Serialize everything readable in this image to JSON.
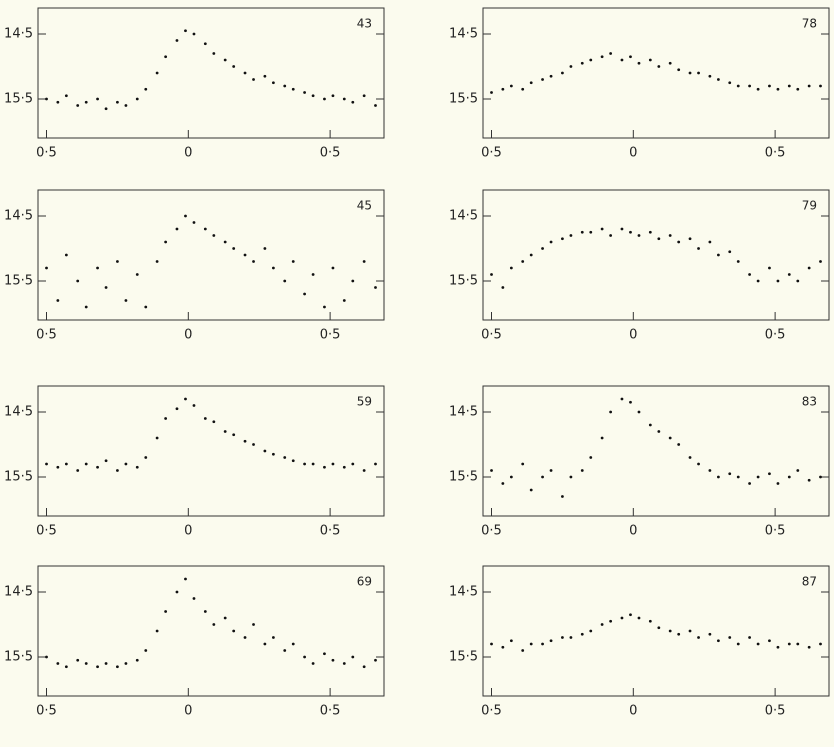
{
  "chart_data": [
    {
      "type": "scatter",
      "title": "43",
      "xlim": [
        -0.53,
        0.69
      ],
      "ylim": [
        16.1,
        14.1
      ],
      "xticks": [
        {
          "value": -0.5,
          "label": "0·5"
        },
        0,
        {
          "value": 0.5,
          "label": "0·5"
        }
      ],
      "yticks": [
        {
          "value": 14.5,
          "label": "14·5"
        },
        {
          "value": 15.5,
          "label": "15·5"
        }
      ],
      "color": "#111111",
      "x": [
        -0.5,
        -0.46,
        -0.43,
        -0.39,
        -0.36,
        -0.32,
        -0.29,
        -0.25,
        -0.22,
        -0.18,
        -0.15,
        -0.11,
        -0.08,
        -0.04,
        -0.01,
        0.02,
        0.06,
        0.09,
        0.13,
        0.16,
        0.2,
        0.23,
        0.27,
        0.3,
        0.34,
        0.37,
        0.41,
        0.44,
        0.48,
        0.51,
        0.55,
        0.58,
        0.62,
        0.66
      ],
      "values": [
        15.5,
        15.55,
        15.45,
        15.6,
        15.55,
        15.5,
        15.65,
        15.55,
        15.6,
        15.5,
        15.35,
        15.1,
        14.85,
        14.6,
        14.45,
        14.5,
        14.65,
        14.8,
        14.9,
        15.0,
        15.1,
        15.2,
        15.15,
        15.25,
        15.3,
        15.35,
        15.4,
        15.45,
        15.5,
        15.45,
        15.5,
        15.55,
        15.45,
        15.6
      ]
    },
    {
      "type": "scatter",
      "title": "78",
      "xlim": [
        -0.53,
        0.69
      ],
      "ylim": [
        16.1,
        14.1
      ],
      "xticks": [
        {
          "value": -0.5,
          "label": "0·5"
        },
        0,
        {
          "value": 0.5,
          "label": "0·5"
        }
      ],
      "yticks": [
        {
          "value": 14.5,
          "label": "14·5"
        },
        {
          "value": 15.5,
          "label": "15·5"
        }
      ],
      "color": "#111111",
      "x": [
        -0.5,
        -0.46,
        -0.43,
        -0.39,
        -0.36,
        -0.32,
        -0.29,
        -0.25,
        -0.22,
        -0.18,
        -0.15,
        -0.11,
        -0.08,
        -0.04,
        -0.01,
        0.02,
        0.06,
        0.09,
        0.13,
        0.16,
        0.2,
        0.23,
        0.27,
        0.3,
        0.34,
        0.37,
        0.41,
        0.44,
        0.48,
        0.51,
        0.55,
        0.58,
        0.62,
        0.66
      ],
      "values": [
        15.4,
        15.35,
        15.3,
        15.35,
        15.25,
        15.2,
        15.15,
        15.1,
        15.0,
        14.95,
        14.9,
        14.85,
        14.8,
        14.9,
        14.85,
        14.95,
        14.9,
        15.0,
        14.95,
        15.05,
        15.1,
        15.1,
        15.15,
        15.2,
        15.25,
        15.3,
        15.3,
        15.35,
        15.3,
        15.35,
        15.3,
        15.35,
        15.3,
        15.3
      ]
    },
    {
      "type": "scatter",
      "title": "45",
      "xlim": [
        -0.53,
        0.69
      ],
      "ylim": [
        16.1,
        14.1
      ],
      "xticks": [
        {
          "value": -0.5,
          "label": "0·5"
        },
        0,
        {
          "value": 0.5,
          "label": "0·5"
        }
      ],
      "yticks": [
        {
          "value": 14.5,
          "label": "14·5"
        },
        {
          "value": 15.5,
          "label": "15·5"
        }
      ],
      "color": "#111111",
      "x": [
        -0.5,
        -0.46,
        -0.43,
        -0.39,
        -0.36,
        -0.32,
        -0.29,
        -0.25,
        -0.22,
        -0.18,
        -0.15,
        -0.11,
        -0.08,
        -0.04,
        -0.01,
        0.02,
        0.06,
        0.09,
        0.13,
        0.16,
        0.2,
        0.23,
        0.27,
        0.3,
        0.34,
        0.37,
        0.41,
        0.44,
        0.48,
        0.51,
        0.55,
        0.58,
        0.62,
        0.66
      ],
      "values": [
        15.3,
        15.8,
        15.1,
        15.5,
        15.9,
        15.3,
        15.6,
        15.2,
        15.8,
        15.4,
        15.9,
        15.2,
        14.9,
        14.7,
        14.5,
        14.6,
        14.7,
        14.8,
        14.9,
        15.0,
        15.1,
        15.2,
        15.0,
        15.3,
        15.5,
        15.2,
        15.7,
        15.4,
        15.9,
        15.3,
        15.8,
        15.5,
        15.2,
        15.6
      ]
    },
    {
      "type": "scatter",
      "title": "79",
      "xlim": [
        -0.53,
        0.69
      ],
      "ylim": [
        16.1,
        14.1
      ],
      "xticks": [
        {
          "value": -0.5,
          "label": "0·5"
        },
        0,
        {
          "value": 0.5,
          "label": "0·5"
        }
      ],
      "yticks": [
        {
          "value": 14.5,
          "label": "14·5"
        },
        {
          "value": 15.5,
          "label": "15·5"
        }
      ],
      "color": "#111111",
      "x": [
        -0.5,
        -0.46,
        -0.43,
        -0.39,
        -0.36,
        -0.32,
        -0.29,
        -0.25,
        -0.22,
        -0.18,
        -0.15,
        -0.11,
        -0.08,
        -0.04,
        -0.01,
        0.02,
        0.06,
        0.09,
        0.13,
        0.16,
        0.2,
        0.23,
        0.27,
        0.3,
        0.34,
        0.37,
        0.41,
        0.44,
        0.48,
        0.51,
        0.55,
        0.58,
        0.62,
        0.66
      ],
      "values": [
        15.4,
        15.6,
        15.3,
        15.2,
        15.1,
        15.0,
        14.9,
        14.85,
        14.8,
        14.75,
        14.75,
        14.7,
        14.8,
        14.7,
        14.75,
        14.8,
        14.75,
        14.85,
        14.8,
        14.9,
        14.85,
        15.0,
        14.9,
        15.1,
        15.05,
        15.2,
        15.4,
        15.5,
        15.3,
        15.5,
        15.4,
        15.5,
        15.3,
        15.2
      ]
    },
    {
      "type": "scatter",
      "title": "59",
      "xlim": [
        -0.53,
        0.69
      ],
      "ylim": [
        16.1,
        14.1
      ],
      "xticks": [
        {
          "value": -0.5,
          "label": "0·5"
        },
        0,
        {
          "value": 0.5,
          "label": "0·5"
        }
      ],
      "yticks": [
        {
          "value": 14.5,
          "label": "14·5"
        },
        {
          "value": 15.5,
          "label": "15·5"
        }
      ],
      "color": "#111111",
      "x": [
        -0.5,
        -0.46,
        -0.43,
        -0.39,
        -0.36,
        -0.32,
        -0.29,
        -0.25,
        -0.22,
        -0.18,
        -0.15,
        -0.11,
        -0.08,
        -0.04,
        -0.01,
        0.02,
        0.06,
        0.09,
        0.13,
        0.16,
        0.2,
        0.23,
        0.27,
        0.3,
        0.34,
        0.37,
        0.41,
        0.44,
        0.48,
        0.51,
        0.55,
        0.58,
        0.62,
        0.66
      ],
      "values": [
        15.3,
        15.35,
        15.3,
        15.4,
        15.3,
        15.35,
        15.25,
        15.4,
        15.3,
        15.35,
        15.2,
        14.9,
        14.6,
        14.45,
        14.3,
        14.4,
        14.6,
        14.65,
        14.8,
        14.85,
        14.95,
        15.0,
        15.1,
        15.15,
        15.2,
        15.25,
        15.3,
        15.3,
        15.35,
        15.3,
        15.35,
        15.3,
        15.4,
        15.3
      ]
    },
    {
      "type": "scatter",
      "title": "83",
      "xlim": [
        -0.53,
        0.69
      ],
      "ylim": [
        16.1,
        14.1
      ],
      "xticks": [
        {
          "value": -0.5,
          "label": "0·5"
        },
        0,
        {
          "value": 0.5,
          "label": "0·5"
        }
      ],
      "yticks": [
        {
          "value": 14.5,
          "label": "14·5"
        },
        {
          "value": 15.5,
          "label": "15·5"
        }
      ],
      "color": "#111111",
      "x": [
        -0.5,
        -0.46,
        -0.43,
        -0.39,
        -0.36,
        -0.32,
        -0.29,
        -0.25,
        -0.22,
        -0.18,
        -0.15,
        -0.11,
        -0.08,
        -0.04,
        -0.01,
        0.02,
        0.06,
        0.09,
        0.13,
        0.16,
        0.2,
        0.23,
        0.27,
        0.3,
        0.34,
        0.37,
        0.41,
        0.44,
        0.48,
        0.51,
        0.55,
        0.58,
        0.62,
        0.66
      ],
      "values": [
        15.4,
        15.6,
        15.5,
        15.3,
        15.7,
        15.5,
        15.4,
        15.8,
        15.5,
        15.4,
        15.2,
        14.9,
        14.5,
        14.3,
        14.35,
        14.5,
        14.7,
        14.8,
        14.9,
        15.0,
        15.2,
        15.3,
        15.4,
        15.5,
        15.45,
        15.5,
        15.6,
        15.5,
        15.45,
        15.6,
        15.5,
        15.4,
        15.55,
        15.5
      ]
    },
    {
      "type": "scatter",
      "title": "69",
      "xlim": [
        -0.53,
        0.69
      ],
      "ylim": [
        16.1,
        14.1
      ],
      "xticks": [
        {
          "value": -0.5,
          "label": "0·5"
        },
        0,
        {
          "value": 0.5,
          "label": "0·5"
        }
      ],
      "yticks": [
        {
          "value": 14.5,
          "label": "14·5"
        },
        {
          "value": 15.5,
          "label": "15·5"
        }
      ],
      "color": "#111111",
      "x": [
        -0.5,
        -0.46,
        -0.43,
        -0.39,
        -0.36,
        -0.32,
        -0.29,
        -0.25,
        -0.22,
        -0.18,
        -0.15,
        -0.11,
        -0.08,
        -0.04,
        -0.01,
        0.02,
        0.06,
        0.09,
        0.13,
        0.16,
        0.2,
        0.23,
        0.27,
        0.3,
        0.34,
        0.37,
        0.41,
        0.44,
        0.48,
        0.51,
        0.55,
        0.58,
        0.62,
        0.66
      ],
      "values": [
        15.5,
        15.6,
        15.65,
        15.55,
        15.6,
        15.65,
        15.6,
        15.65,
        15.6,
        15.55,
        15.4,
        15.1,
        14.8,
        14.5,
        14.3,
        14.6,
        14.8,
        15.0,
        14.9,
        15.1,
        15.2,
        15.0,
        15.3,
        15.2,
        15.4,
        15.3,
        15.5,
        15.6,
        15.45,
        15.55,
        15.6,
        15.5,
        15.65,
        15.55
      ]
    },
    {
      "type": "scatter",
      "title": "87",
      "xlim": [
        -0.53,
        0.69
      ],
      "ylim": [
        16.1,
        14.1
      ],
      "xticks": [
        {
          "value": -0.5,
          "label": "0·5"
        },
        0,
        {
          "value": 0.5,
          "label": "0·5"
        }
      ],
      "yticks": [
        {
          "value": 14.5,
          "label": "14·5"
        },
        {
          "value": 15.5,
          "label": "15·5"
        }
      ],
      "color": "#111111",
      "x": [
        -0.5,
        -0.46,
        -0.43,
        -0.39,
        -0.36,
        -0.32,
        -0.29,
        -0.25,
        -0.22,
        -0.18,
        -0.15,
        -0.11,
        -0.08,
        -0.04,
        -0.01,
        0.02,
        0.06,
        0.09,
        0.13,
        0.16,
        0.2,
        0.23,
        0.27,
        0.3,
        0.34,
        0.37,
        0.41,
        0.44,
        0.48,
        0.51,
        0.55,
        0.58,
        0.62,
        0.66
      ],
      "values": [
        15.3,
        15.35,
        15.25,
        15.4,
        15.3,
        15.3,
        15.25,
        15.2,
        15.2,
        15.15,
        15.1,
        15.0,
        14.95,
        14.9,
        14.85,
        14.9,
        14.95,
        15.05,
        15.1,
        15.15,
        15.1,
        15.2,
        15.15,
        15.25,
        15.2,
        15.3,
        15.2,
        15.3,
        15.25,
        15.35,
        15.3,
        15.3,
        15.35,
        15.3
      ]
    }
  ]
}
